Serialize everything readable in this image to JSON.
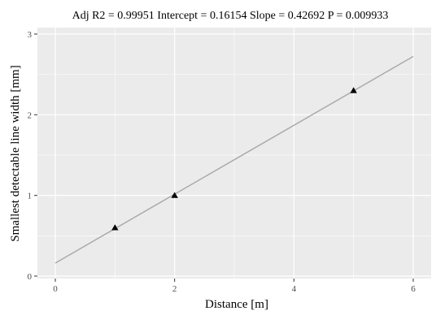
{
  "chart_data": {
    "type": "scatter",
    "title": "Adj R2 =  0.99951 Intercept = 0.16154  Slope = 0.42692  P = 0.009933",
    "xlabel": "Distance [m]",
    "ylabel": "Smallest detectable line width [mm]",
    "xlim": [
      -0.3,
      6.3
    ],
    "ylim": [
      -0.03,
      3.08
    ],
    "xticks": [
      0,
      2,
      4,
      6
    ],
    "xticks_minor": [
      1,
      3,
      5
    ],
    "yticks": [
      0,
      1,
      2,
      3
    ],
    "yticks_minor": [
      0.5,
      1.5,
      2.5
    ],
    "grid": true,
    "points": [
      {
        "x": 1,
        "y": 0.6
      },
      {
        "x": 2,
        "y": 1.0
      },
      {
        "x": 5,
        "y": 2.3
      }
    ],
    "fit_line": {
      "intercept": 0.16154,
      "slope": 0.42692,
      "x_range": [
        0,
        6
      ]
    },
    "colors": {
      "panel": "#ebebeb",
      "grid": "#ffffff",
      "fit_line": "#aaaaaa",
      "points": "#000000"
    }
  }
}
